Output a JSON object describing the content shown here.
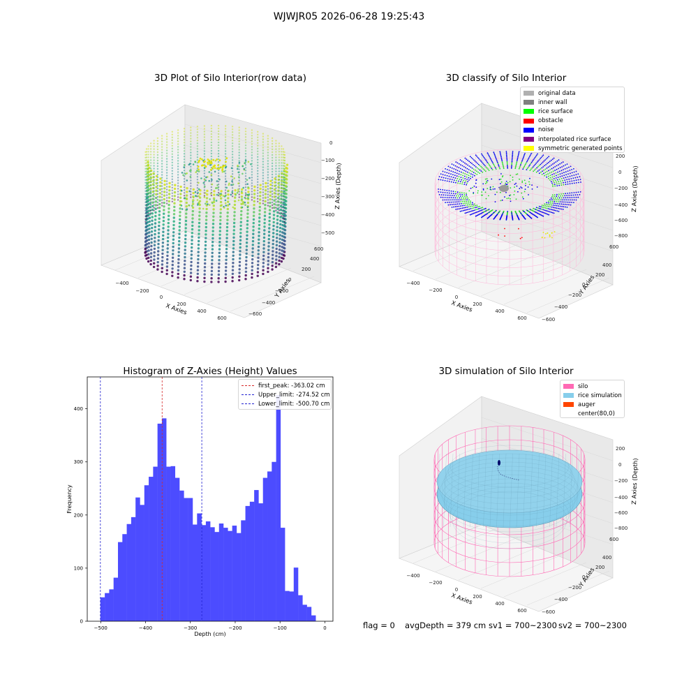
{
  "figure": {
    "suptitle": "WJWJR05 2026-06-28 19:25:43",
    "status": {
      "flag": "flag = 0",
      "avg_depth": "avgDepth = 379 cm",
      "sv1": "sv1 = 700~2300",
      "sv2": "sv2 = 700~2300"
    }
  },
  "panels": {
    "raw": {
      "title": "3D Plot of Silo Interior(row data)",
      "xlabel": "X Axies",
      "ylabel": "Y Axies",
      "zlabel": "Z Axies (Depth)",
      "xticks": [
        "−400",
        "−200",
        "0",
        "200",
        "400",
        "600"
      ],
      "yticks": [
        "−600",
        "−400",
        "−200",
        "0",
        "200",
        "400",
        "600"
      ],
      "zticks": [
        "0",
        "−100",
        "−200",
        "−300",
        "−400",
        "−500"
      ]
    },
    "classify": {
      "title": "3D classify of Silo Interior",
      "xlabel": "X Axies",
      "ylabel": "Y Axies",
      "zlabel": "Z Axies (Depth)",
      "xticks": [
        "−400",
        "−200",
        "0",
        "200",
        "400",
        "600"
      ],
      "yticks": [
        "−600",
        "−400",
        "−200",
        "0",
        "200",
        "400",
        "600"
      ],
      "zticks": [
        "200",
        "0",
        "−200",
        "−400",
        "−600",
        "−800"
      ],
      "legend": [
        {
          "label": "original data",
          "color": "#b0b0b0"
        },
        {
          "label": "inner wall",
          "color": "#808080"
        },
        {
          "label": "rice surface",
          "color": "#00ff00"
        },
        {
          "label": "obstacle",
          "color": "#ff0000"
        },
        {
          "label": "noise",
          "color": "#0000ff"
        },
        {
          "label": "interpolated rice surface",
          "color": "#800080"
        },
        {
          "label": "symmetric generated points",
          "color": "#ffff00"
        }
      ]
    },
    "simulation": {
      "title": "3D simulation of Silo Interior",
      "xlabel": "X Axies",
      "ylabel": "Y Axies",
      "zlabel": "Z Axies (Depth)",
      "xticks": [
        "−400",
        "−200",
        "0",
        "200",
        "400",
        "600"
      ],
      "yticks": [
        "−600",
        "−400",
        "−200",
        "0",
        "200",
        "400",
        "600"
      ],
      "zticks": [
        "200",
        "0",
        "−200",
        "−400",
        "−600",
        "−800"
      ],
      "legend": [
        {
          "label": "silo",
          "color": "#ff69b4"
        },
        {
          "label": "rice simulation",
          "color": "#87ceeb"
        },
        {
          "label": "auger",
          "color": "#ff4500"
        },
        {
          "label": "center(80,0)",
          "color": ""
        }
      ]
    }
  },
  "chart_data": {
    "type": "bar",
    "title": "Histogram of Z-Axies (Height) Values",
    "xlabel": "Depth (cm)",
    "ylabel": "Frequency",
    "xlim": [
      -530,
      18
    ],
    "ylim": [
      0,
      460
    ],
    "xticks": [
      -500,
      -400,
      -300,
      -200,
      -100,
      0
    ],
    "xtick_labels": [
      "−500",
      "−400",
      "−300",
      "−200",
      "−100",
      "0"
    ],
    "yticks": [
      0,
      100,
      200,
      300,
      400
    ],
    "bin_start": -500.7,
    "bin_width": 9.8,
    "values": [
      45,
      53,
      60,
      82,
      149,
      164,
      183,
      196,
      233,
      219,
      256,
      272,
      291,
      372,
      382,
      291,
      292,
      270,
      246,
      232,
      232,
      182,
      203,
      181,
      188,
      177,
      168,
      184,
      176,
      170,
      180,
      166,
      190,
      217,
      225,
      247,
      222,
      270,
      282,
      300,
      426,
      176,
      57,
      56,
      101,
      49,
      31,
      27,
      11
    ],
    "bar_color": "#4c4cff",
    "legend_position": "upper right",
    "vlines": [
      {
        "label": "first_peak: -363.02 cm",
        "x": -363.02,
        "color": "#d62728"
      },
      {
        "label": "Upper_limit: -274.52 cm",
        "x": -274.52,
        "color": "#1f1fd0"
      },
      {
        "label": "Lower_limit: -500.70 cm",
        "x": -500.7,
        "color": "#1f1fd0"
      }
    ]
  }
}
